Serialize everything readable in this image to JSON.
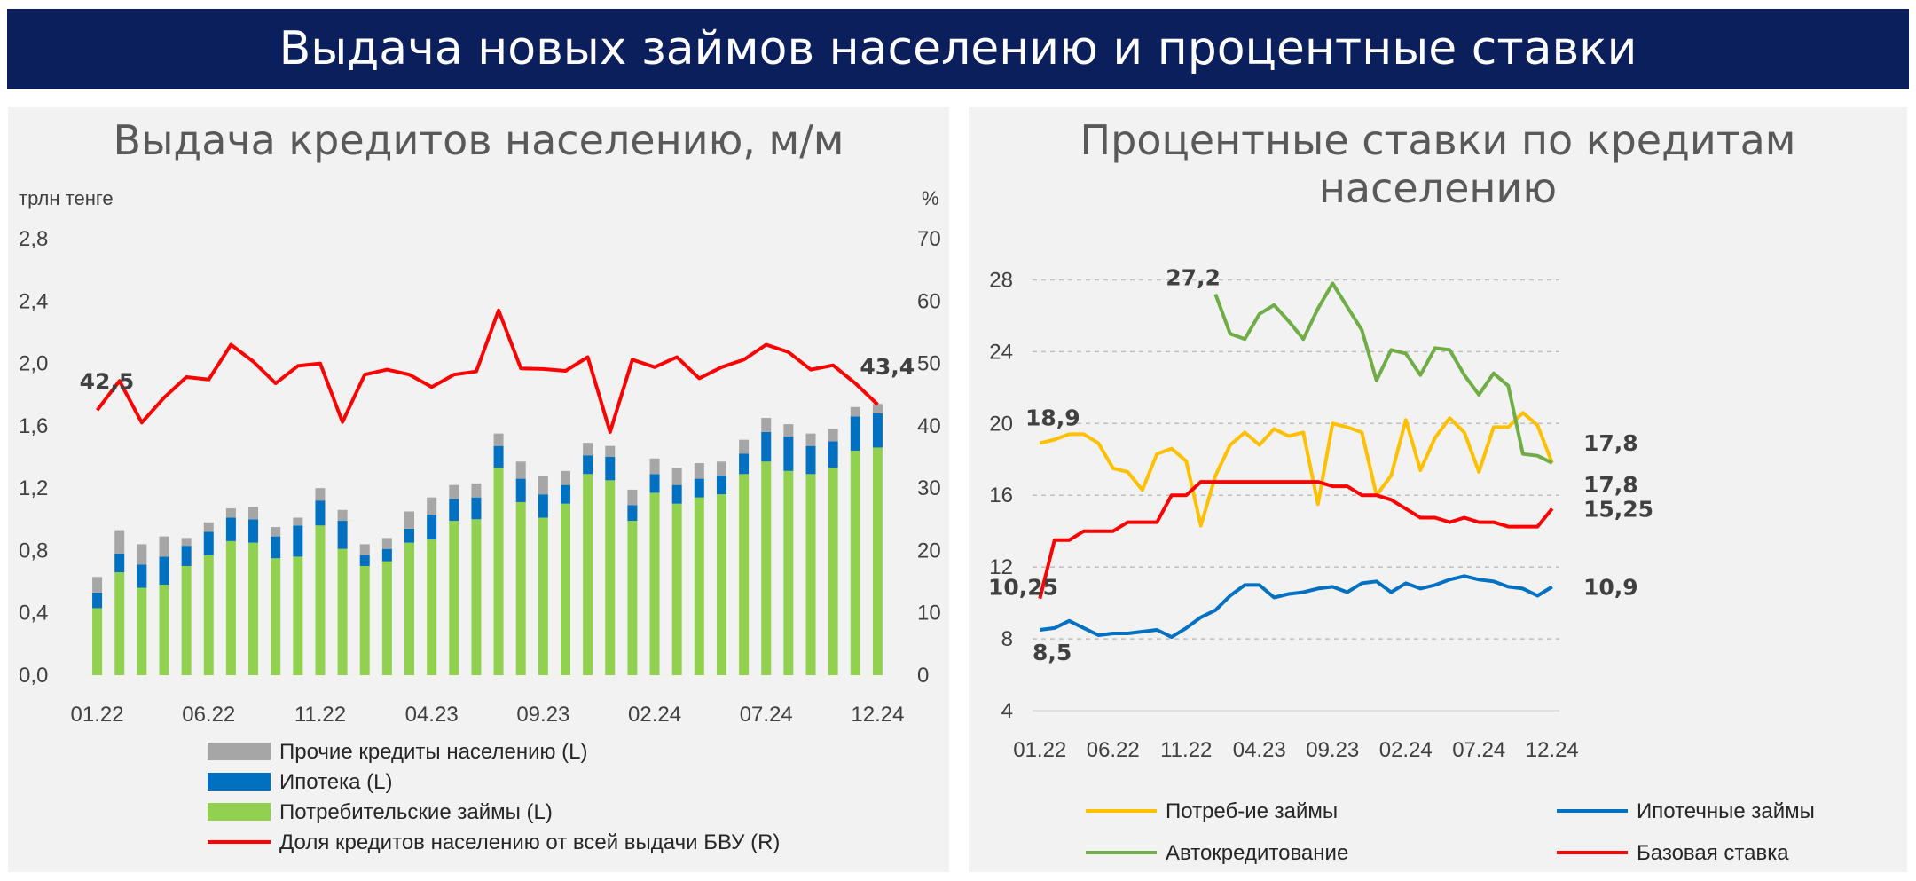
{
  "banner": {
    "title": "Выдача новых займов населению и процентные ставки"
  },
  "chart_data": [
    {
      "type": "bar",
      "title": "Выдача кредитов населению, м/м",
      "ylabel": "трлн тенге",
      "y2label": "%",
      "ylim": [
        0,
        2.8
      ],
      "y2lim": [
        0,
        70
      ],
      "yticks": [
        "0,0",
        "0,4",
        "0,8",
        "1,2",
        "1,6",
        "2,0",
        "2,4",
        "2,8"
      ],
      "y2ticks": [
        "0",
        "10",
        "20",
        "30",
        "40",
        "50",
        "60",
        "70"
      ],
      "xticks": [
        "01.22",
        "06.22",
        "11.22",
        "04.23",
        "09.23",
        "02.24",
        "07.24",
        "12.24"
      ],
      "stacked": true,
      "series": [
        {
          "name": "Потребительские займы (L)",
          "color": "#92d050",
          "values": [
            0.43,
            0.66,
            0.56,
            0.58,
            0.7,
            0.77,
            0.86,
            0.85,
            0.75,
            0.76,
            0.96,
            0.81,
            0.7,
            0.73,
            0.85,
            0.87,
            0.99,
            1.0,
            1.33,
            1.11,
            1.01,
            1.1,
            1.29,
            1.25,
            0.99,
            1.17,
            1.1,
            1.14,
            1.16,
            1.29,
            1.37,
            1.31,
            1.29,
            1.33,
            1.44,
            1.46
          ]
        },
        {
          "name": "Ипотека (L)",
          "color": "#0070c0",
          "values": [
            0.1,
            0.12,
            0.15,
            0.18,
            0.13,
            0.15,
            0.15,
            0.15,
            0.14,
            0.2,
            0.16,
            0.18,
            0.07,
            0.08,
            0.09,
            0.16,
            0.14,
            0.14,
            0.14,
            0.15,
            0.15,
            0.12,
            0.12,
            0.15,
            0.1,
            0.12,
            0.12,
            0.12,
            0.12,
            0.13,
            0.19,
            0.22,
            0.18,
            0.17,
            0.22,
            0.22
          ]
        },
        {
          "name": "Прочие кредиты населению (L)",
          "color": "#a6a6a6",
          "values": [
            0.1,
            0.15,
            0.13,
            0.13,
            0.05,
            0.06,
            0.06,
            0.08,
            0.06,
            0.05,
            0.08,
            0.07,
            0.07,
            0.07,
            0.11,
            0.11,
            0.09,
            0.09,
            0.08,
            0.11,
            0.12,
            0.09,
            0.08,
            0.07,
            0.1,
            0.1,
            0.11,
            0.1,
            0.09,
            0.09,
            0.09,
            0.08,
            0.08,
            0.08,
            0.06,
            0.06
          ]
        },
        {
          "name": "Доля кредитов населению от всей выдачи БВУ (R)",
          "color": "#ff0000",
          "type": "line",
          "axis": "right",
          "values": [
            42.5,
            47.2,
            40.5,
            44.5,
            47.8,
            47.4,
            53.0,
            50.3,
            46.8,
            49.6,
            50.0,
            40.6,
            48.2,
            49.0,
            48.2,
            46.2,
            48.2,
            48.7,
            58.5,
            49.2,
            49.1,
            48.8,
            51.0,
            39.0,
            50.6,
            49.4,
            51.0,
            47.6,
            49.4,
            50.6,
            53.0,
            51.8,
            49.0,
            49.7,
            46.8,
            43.4
          ]
        }
      ],
      "annotations": [
        "42,5",
        "43,4"
      ],
      "legend_position": "bottom"
    },
    {
      "type": "line",
      "title": "Процентные ставки по кредитам населению",
      "ylim": [
        4,
        30
      ],
      "yticks": [
        "4",
        "8",
        "12",
        "16",
        "20",
        "24",
        "28"
      ],
      "xticks": [
        "01.22",
        "06.22",
        "11.22",
        "04.23",
        "09.23",
        "02.24",
        "07.24",
        "12.24"
      ],
      "series": [
        {
          "name": "Потреб-ие займы",
          "color": "#ffc000",
          "values": [
            18.9,
            19.1,
            19.4,
            19.4,
            18.9,
            17.5,
            17.3,
            16.3,
            18.3,
            18.6,
            17.9,
            14.3,
            17.1,
            18.8,
            19.5,
            18.8,
            19.7,
            19.3,
            19.5,
            15.5,
            20.0,
            19.8,
            19.5,
            16.0,
            17.1,
            20.2,
            17.4,
            19.2,
            20.3,
            19.5,
            17.3,
            19.8,
            19.8,
            20.6,
            19.9,
            17.8
          ]
        },
        {
          "name": "Ипотечные займы",
          "color": "#0070c0",
          "values": [
            8.5,
            8.6,
            9.0,
            8.6,
            8.2,
            8.3,
            8.3,
            8.4,
            8.5,
            8.1,
            8.6,
            9.2,
            9.6,
            10.4,
            11.0,
            11.0,
            10.3,
            10.5,
            10.6,
            10.8,
            10.9,
            10.6,
            11.1,
            11.2,
            10.6,
            11.1,
            10.8,
            11.0,
            11.3,
            11.5,
            11.3,
            11.2,
            10.9,
            10.8,
            10.4,
            10.9
          ]
        },
        {
          "name": "Автокредитование",
          "color": "#70ad47",
          "values": [
            null,
            null,
            null,
            null,
            null,
            null,
            null,
            null,
            null,
            null,
            null,
            null,
            27.2,
            25.0,
            24.7,
            26.1,
            26.6,
            25.7,
            24.7,
            26.4,
            27.8,
            26.5,
            25.2,
            22.4,
            24.1,
            23.9,
            22.7,
            24.2,
            24.1,
            22.7,
            21.6,
            22.8,
            22.1,
            18.3,
            18.2,
            17.8
          ]
        },
        {
          "name": "Базовая ставка",
          "color": "#ff0000",
          "values": [
            10.25,
            13.5,
            13.5,
            14.0,
            14.0,
            14.0,
            14.5,
            14.5,
            14.5,
            16.0,
            16.0,
            16.75,
            16.75,
            16.75,
            16.75,
            16.75,
            16.75,
            16.75,
            16.75,
            16.75,
            16.5,
            16.5,
            16.0,
            16.0,
            15.75,
            15.25,
            14.75,
            14.75,
            14.5,
            14.75,
            14.5,
            14.5,
            14.25,
            14.25,
            14.25,
            15.25
          ]
        }
      ],
      "annotations": [
        "18,9",
        "27,2",
        "10,25",
        "8,5",
        "17,8",
        "17,8",
        "15,25",
        "10,9"
      ],
      "legend_position": "bottom"
    }
  ]
}
